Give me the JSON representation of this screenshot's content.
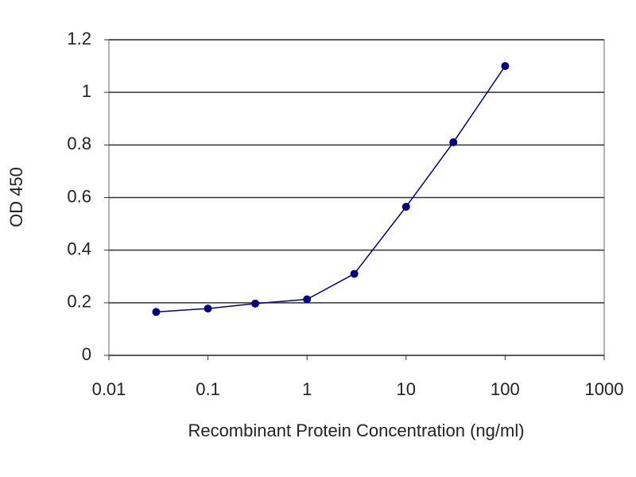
{
  "chart_data": {
    "type": "line",
    "x_label": "Recombinant Protein Concentration (ng/ml)",
    "y_label": "OD 450",
    "x_log": true,
    "grid": true,
    "xlim": [
      0.01,
      1000
    ],
    "xticks": [
      0.01,
      0.1,
      1,
      10,
      100,
      1000
    ],
    "ylim": [
      0,
      1.2
    ],
    "yticks": [
      0,
      0.2,
      0.4,
      0.6,
      0.8,
      1,
      1.2
    ],
    "x": [
      0.03,
      0.1,
      0.3,
      1,
      3,
      10,
      30,
      100
    ],
    "series": [
      {
        "color": "#000080",
        "values": [
          0.165,
          0.178,
          0.197,
          0.213,
          0.31,
          0.565,
          0.81,
          1.1
        ]
      }
    ]
  }
}
